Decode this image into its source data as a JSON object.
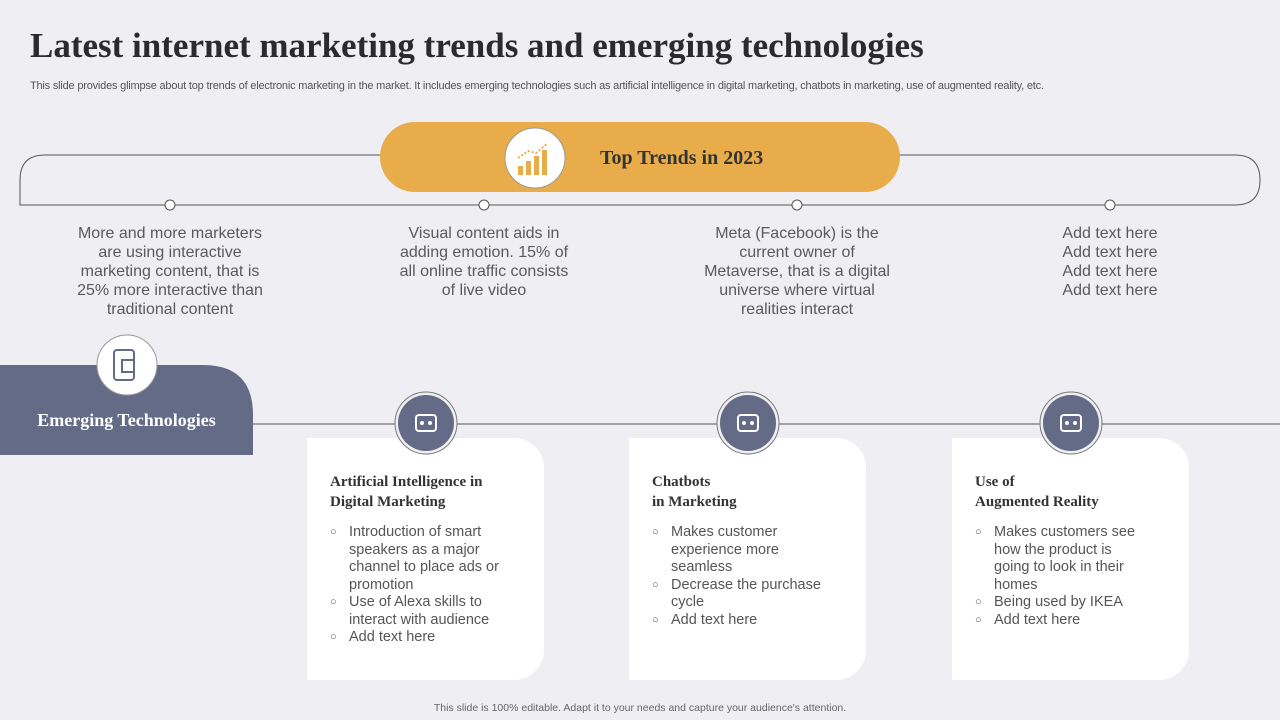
{
  "header": {
    "title": "Latest internet marketing trends and emerging technologies",
    "subtitle": "This slide provides glimpse about top trends of electronic marketing in the market. It includes emerging technologies such as artificial intelligence in digital marketing, chatbots in marketing, use of augmented reality, etc."
  },
  "top_trends": {
    "label": "Top Trends in 2023",
    "items": [
      {
        "lines": [
          "More and more marketers",
          "are using interactive",
          "marketing content, that is",
          "25% more interactive than",
          "traditional content"
        ]
      },
      {
        "lines": [
          "Visual content aids in",
          "adding emotion. 15% of",
          "all online traffic consists",
          "of live video"
        ]
      },
      {
        "lines": [
          "Meta (Facebook) is the",
          "current owner of",
          "Metaverse, that is a digital",
          "universe where virtual",
          "realities interact"
        ]
      },
      {
        "lines": [
          "Add text here",
          "Add text here",
          "Add text here",
          "Add text here"
        ]
      }
    ]
  },
  "emerging": {
    "label": "Emerging Technologies",
    "cards": [
      {
        "title": [
          "Artificial Intelligence in",
          "Digital Marketing"
        ],
        "bullets": [
          "Introduction of smart speakers as a major channel to place ads or promotion",
          "Use of Alexa skills to interact with audience",
          "Add text here"
        ]
      },
      {
        "title": [
          "Chatbots",
          "in Marketing"
        ],
        "bullets": [
          "Makes customer experience more seamless",
          "Decrease the purchase cycle",
          "Add text here"
        ]
      },
      {
        "title": [
          "Use of",
          "Augmented Reality"
        ],
        "bullets": [
          "Makes customers see how the product is going to look in their homes",
          "Being used by IKEA",
          "Add text here"
        ]
      }
    ]
  },
  "footer": "This slide is 100% editable. Adapt it to your needs and capture your audience's attention."
}
